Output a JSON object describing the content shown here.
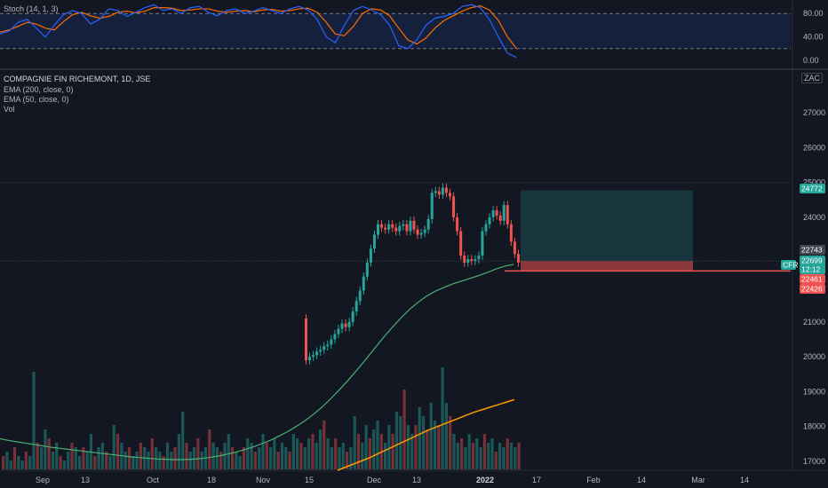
{
  "legend": {
    "title": "COMPAGNIE FIN RICHEMONT, 1D, JSE",
    "ema200": "EMA (200, close, 0)",
    "ema50": "EMA (50, close, 0)",
    "vol": "Vol"
  },
  "stoch": {
    "label": "Stoch (14, 1, 3)",
    "ticks": [
      "80.00",
      "40.00",
      "0.00"
    ]
  },
  "currency_label": "ZAC",
  "colors": {
    "up": "#26a69a",
    "down": "#ef5350",
    "ema50": "#4caf72",
    "ema200": "#ff9800",
    "stoch_k": "#2962ff",
    "stoch_d": "#ff6d00",
    "background": "#131722"
  },
  "chart_data": {
    "type": "candlestick",
    "y_ticks": [
      17000,
      18000,
      19000,
      20000,
      21000,
      22000,
      23000,
      24000,
      25000,
      26000,
      27000
    ],
    "ylim": [
      16700,
      28000
    ],
    "x_labels": [
      "Sep",
      "13",
      "Oct",
      "18",
      "Nov",
      "15",
      "Dec",
      "13",
      "2022",
      "17",
      "Feb",
      "14",
      "Mar",
      "14"
    ],
    "price_badges": [
      {
        "label": "24772",
        "value": 24772,
        "color": "#26a69a"
      },
      {
        "label": "22743",
        "value": 22743,
        "color": "#434651"
      },
      {
        "label": "CFR",
        "value": 22699,
        "color": "#26a69a"
      },
      {
        "label": "22699",
        "value": 22699,
        "color": "#26a69a"
      },
      {
        "label": "12:12",
        "value": 22580,
        "color": "#26a69a"
      },
      {
        "label": "22461",
        "value": 22461,
        "color": "#ef5350"
      },
      {
        "label": "22426",
        "value": 22426,
        "color": "#ef5350"
      }
    ],
    "position": {
      "entry": 22743,
      "target": 24772,
      "stop": 22461
    },
    "price_closes": [
      19900,
      20000,
      20050,
      20150,
      20200,
      20300,
      20350,
      20500,
      20650,
      20800,
      20950,
      20850,
      21000,
      21300,
      21600,
      21900,
      22300,
      22700,
      23100,
      23500,
      23800,
      23700,
      23650,
      23800,
      23700,
      23600,
      23750,
      23800,
      23600,
      23900,
      23650,
      23500,
      23550,
      23650,
      23950,
      24700,
      24750,
      24650,
      24850,
      24700,
      24600,
      24000,
      23600,
      22900,
      22700,
      22800,
      22750,
      22800,
      22900,
      23600,
      23800,
      24000,
      24200,
      24050,
      23900,
      24350,
      23800,
      23300,
      22950,
      22699
    ],
    "ema50": [
      17650,
      17600,
      17560,
      17520,
      17480,
      17440,
      17400,
      17370,
      17340,
      17310,
      17280,
      17250,
      17220,
      17190,
      17160,
      17130,
      17110,
      17090,
      17070,
      17060,
      17050,
      17050,
      17060,
      17080,
      17110,
      17150,
      17200,
      17260,
      17330,
      17410,
      17500,
      17600,
      17720,
      17850,
      18000,
      18160,
      18350,
      18560,
      18800,
      19060,
      19330,
      19620,
      19920,
      20230,
      20540,
      20830,
      21100,
      21350,
      21560,
      21740,
      21880,
      21990,
      22090,
      22170,
      22250,
      22330,
      22420,
      22520,
      22600,
      22650
    ],
    "ema200": [
      16700,
      16750,
      16800,
      16850,
      16900,
      16950,
      17000,
      17050,
      17110,
      17170,
      17230,
      17290,
      17350,
      17410,
      17470,
      17530,
      17590,
      17650,
      17710,
      17770,
      17830,
      17880,
      17930,
      17980,
      18030,
      18080,
      18130,
      18180,
      18230,
      18280,
      18330,
      18370,
      18410,
      18450,
      18490,
      18530,
      18570,
      18610,
      18650,
      18690
    ],
    "volume": [
      3,
      4,
      2,
      5,
      3,
      2,
      4,
      3,
      22,
      6,
      5,
      9,
      7,
      4,
      6,
      3,
      2,
      4,
      6,
      5,
      3,
      5,
      4,
      8,
      3,
      5,
      6,
      4,
      3,
      10,
      8,
      6,
      4,
      5,
      3,
      4,
      6,
      5,
      4,
      7,
      5,
      4,
      3,
      6,
      4,
      5,
      8,
      13,
      6,
      4,
      5,
      7,
      4,
      5,
      9,
      6,
      5,
      4,
      6,
      8,
      5,
      4,
      3,
      5,
      7,
      6,
      4,
      5,
      8,
      6,
      5,
      7,
      4,
      6,
      5,
      4,
      8,
      7,
      6,
      5,
      7,
      8,
      6,
      9,
      11,
      7,
      5,
      7,
      5,
      6,
      4,
      5,
      12,
      8,
      6,
      10,
      7,
      9,
      11,
      8,
      6,
      10,
      8,
      13,
      12,
      18,
      10,
      8,
      10,
      14,
      12,
      9,
      15,
      11,
      10,
      23,
      15,
      12,
      8,
      6,
      7,
      5,
      8,
      6,
      7,
      5,
      8,
      6,
      7,
      4,
      6,
      5,
      7,
      6,
      5,
      6
    ],
    "stoch_k": [
      45,
      50,
      65,
      70,
      55,
      40,
      60,
      78,
      85,
      80,
      62,
      70,
      88,
      85,
      75,
      82,
      90,
      95,
      85,
      88,
      80,
      90,
      92,
      82,
      76,
      85,
      88,
      80,
      84,
      90,
      85,
      80,
      88,
      92,
      86,
      70,
      40,
      30,
      60,
      85,
      92,
      86,
      78,
      60,
      25,
      20,
      35,
      60,
      72,
      75,
      80,
      92,
      95,
      90,
      70,
      40,
      12,
      5
    ],
    "stoch_d": [
      48,
      52,
      58,
      65,
      62,
      55,
      52,
      66,
      78,
      82,
      76,
      72,
      75,
      82,
      84,
      81,
      84,
      90,
      90,
      89,
      85,
      86,
      88,
      88,
      84,
      82,
      84,
      85,
      83,
      86,
      87,
      84,
      85,
      88,
      89,
      82,
      65,
      45,
      42,
      58,
      80,
      88,
      86,
      76,
      55,
      35,
      28,
      38,
      55,
      68,
      76,
      84,
      90,
      93,
      86,
      68,
      40,
      20
    ]
  }
}
